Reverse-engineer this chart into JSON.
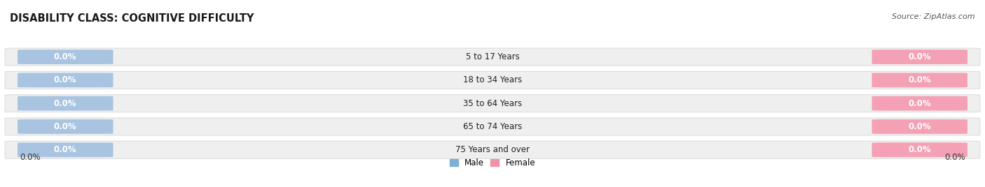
{
  "title": "DISABILITY CLASS: COGNITIVE DIFFICULTY",
  "source": "Source: ZipAtlas.com",
  "categories": [
    "5 to 17 Years",
    "18 to 34 Years",
    "35 to 64 Years",
    "65 to 74 Years",
    "75 Years and over"
  ],
  "male_values": [
    0.0,
    0.0,
    0.0,
    0.0,
    0.0
  ],
  "female_values": [
    0.0,
    0.0,
    0.0,
    0.0,
    0.0
  ],
  "male_color": "#a8c4e0",
  "female_color": "#f4a0b5",
  "male_label": "Male",
  "female_label": "Female",
  "male_legend_color": "#7bafd4",
  "female_legend_color": "#f093aa",
  "bar_bg_color": "#efefef",
  "bar_border_color": "#dddddd",
  "title_fontsize": 10.5,
  "source_fontsize": 8,
  "label_fontsize": 8.5,
  "tick_fontsize": 8.5,
  "cat_fontsize": 8.5,
  "axis_label_x_left": "0.0%",
  "axis_label_x_right": "0.0%",
  "background_color": "#ffffff"
}
